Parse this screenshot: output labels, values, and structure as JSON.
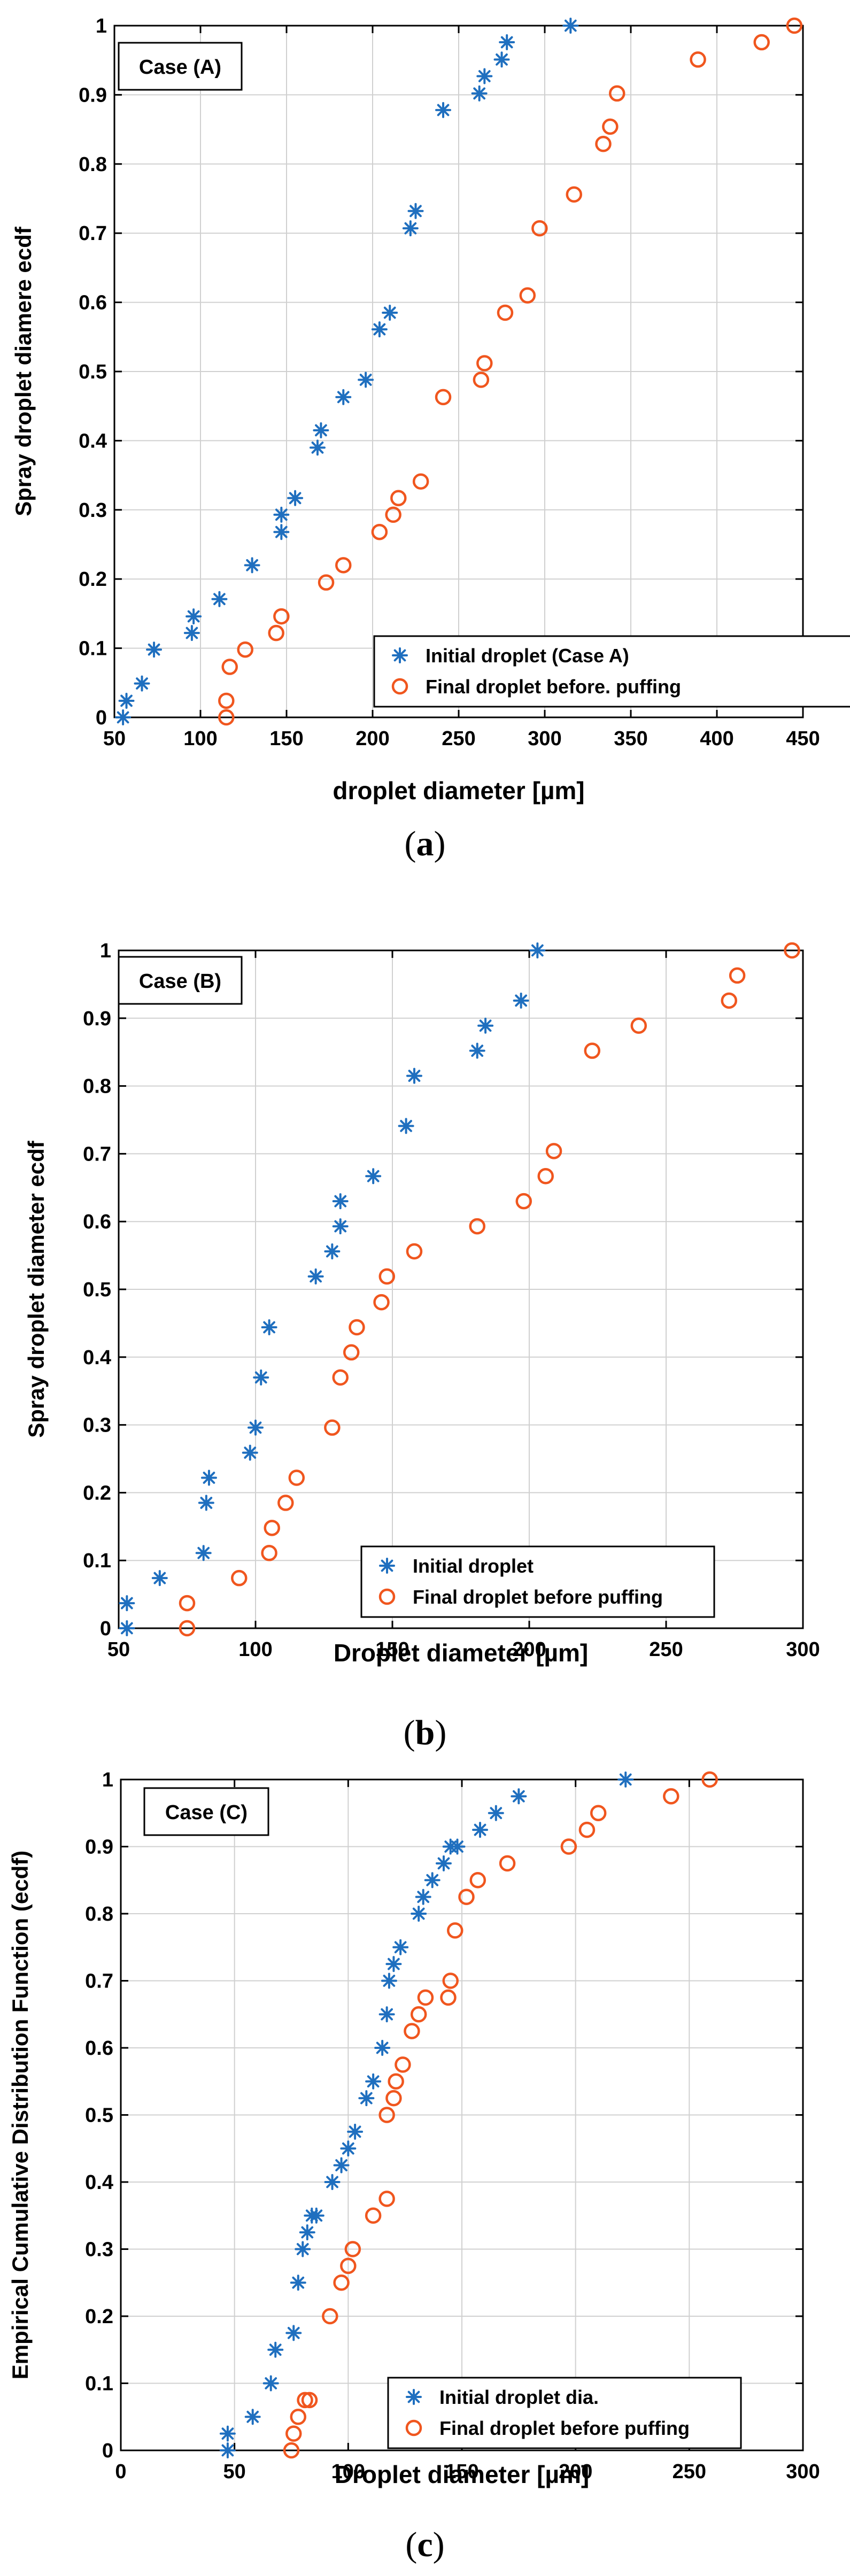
{
  "figure": {
    "initial_color": "#1f6fbf",
    "final_color": "#f0561e",
    "grid_color": "#d0d0d0"
  },
  "chart_data": [
    {
      "type": "scatter",
      "panel_letter": "a",
      "case_label": "Case (A)",
      "xlabel": "droplet diameter [µm]",
      "ylabel": "Spray droplet diamere ecdf",
      "xlim": [
        50,
        450
      ],
      "ylim": [
        0,
        1
      ],
      "xticks": [
        50,
        100,
        150,
        200,
        250,
        300,
        350,
        400,
        450
      ],
      "yticks": [
        0,
        0.1,
        0.2,
        0.3,
        0.4,
        0.5,
        0.6,
        0.7,
        0.8,
        0.9,
        1
      ],
      "ytick_labels": [
        "0",
        "0.1",
        "0.2",
        "0.3",
        "0.4",
        "0.5",
        "0.6",
        "0.7",
        "0.8",
        "0.9",
        "1"
      ],
      "legend_position": "bottom-right",
      "series": [
        {
          "name": "Initial droplet (Case A)",
          "marker": "asterisk",
          "x": [
            55,
            57,
            66,
            73,
            95,
            96,
            111,
            130,
            147,
            147,
            155,
            168,
            170,
            183,
            196,
            204,
            210,
            222,
            225,
            241,
            262,
            265,
            275,
            278,
            315
          ],
          "y": [
            0,
            0.024,
            0.049,
            0.098,
            0.122,
            0.146,
            0.171,
            0.22,
            0.268,
            0.293,
            0.317,
            0.39,
            0.415,
            0.463,
            0.488,
            0.561,
            0.585,
            0.707,
            0.732,
            0.878,
            0.902,
            0.927,
            0.951,
            0.976,
            1.0
          ]
        },
        {
          "name": "Final droplet before. puffing",
          "marker": "circle",
          "x": [
            115,
            115,
            117,
            126,
            144,
            147,
            173,
            183,
            204,
            212,
            215,
            228,
            241,
            263,
            265,
            277,
            290,
            297,
            317,
            334,
            338,
            342,
            389,
            426,
            445
          ],
          "y": [
            0,
            0.024,
            0.073,
            0.098,
            0.122,
            0.146,
            0.195,
            0.22,
            0.268,
            0.293,
            0.317,
            0.341,
            0.463,
            0.488,
            0.512,
            0.585,
            0.61,
            0.707,
            0.756,
            0.829,
            0.854,
            0.902,
            0.951,
            0.976,
            1.0
          ]
        }
      ]
    },
    {
      "type": "scatter",
      "panel_letter": "b",
      "case_label": "Case (B)",
      "xlabel": "Droplet diameter [µm]",
      "ylabel": "Spray droplet diameter ecdf",
      "xlim": [
        50,
        300
      ],
      "ylim": [
        0,
        1
      ],
      "xticks": [
        50,
        100,
        150,
        200,
        250,
        300
      ],
      "yticks": [
        0,
        0.1,
        0.2,
        0.3,
        0.4,
        0.5,
        0.6,
        0.7,
        0.8,
        0.9,
        1
      ],
      "ytick_labels": [
        "0",
        "0.1",
        "0.2",
        "0.3",
        "0.4",
        "0.5",
        "0.6",
        "0.7",
        "0.8",
        "0.9",
        "1"
      ],
      "legend_position": "bottom-right",
      "series": [
        {
          "name": "Initial droplet",
          "marker": "asterisk",
          "x": [
            53,
            53,
            65,
            81,
            82,
            83,
            98,
            100,
            102,
            105,
            122,
            128,
            131,
            131,
            143,
            155,
            158,
            181,
            184,
            197,
            203
          ],
          "y": [
            0,
            0.037,
            0.074,
            0.111,
            0.185,
            0.222,
            0.259,
            0.296,
            0.37,
            0.444,
            0.519,
            0.556,
            0.593,
            0.63,
            0.667,
            0.741,
            0.815,
            0.852,
            0.889,
            0.926,
            1.0
          ]
        },
        {
          "name": "Final droplet before puffing",
          "marker": "circle",
          "x": [
            75,
            75,
            94,
            105,
            106,
            111,
            115,
            128,
            131,
            135,
            137,
            146,
            148,
            158,
            181,
            198,
            206,
            209,
            223,
            240,
            273,
            276,
            296
          ],
          "y": [
            0,
            0.037,
            0.074,
            0.111,
            0.148,
            0.185,
            0.222,
            0.296,
            0.37,
            0.407,
            0.444,
            0.481,
            0.519,
            0.556,
            0.593,
            0.63,
            0.667,
            0.704,
            0.852,
            0.889,
            0.926,
            0.963,
            1.0
          ]
        }
      ]
    },
    {
      "type": "scatter",
      "panel_letter": "c",
      "case_label": "Case (C)",
      "xlabel": "Droplet diameter [µm]",
      "ylabel": "Empirical Cumulative Distribution Function (ecdf)",
      "xlim": [
        0,
        300
      ],
      "ylim": [
        0,
        1
      ],
      "xticks": [
        0,
        50,
        100,
        150,
        200,
        250,
        300
      ],
      "yticks": [
        0,
        0.1,
        0.2,
        0.3,
        0.4,
        0.5,
        0.6,
        0.7,
        0.8,
        0.9,
        1
      ],
      "ytick_labels": [
        "0",
        "0.1",
        "0.2",
        "0.3",
        "0.4",
        "0.5",
        "0.6",
        "0.7",
        "0.8",
        "0.9",
        "1"
      ],
      "legend_position": "bottom-right",
      "series": [
        {
          "name": "Initial droplet dia.",
          "marker": "asterisk",
          "x": [
            47,
            47,
            58,
            66,
            68,
            76,
            78,
            80,
            82,
            84,
            86,
            93,
            97,
            100,
            103,
            108,
            111,
            115,
            117,
            118,
            120,
            123,
            131,
            133,
            137,
            142,
            145,
            148,
            158,
            165,
            175,
            222
          ],
          "y": [
            0,
            0.025,
            0.05,
            0.1,
            0.15,
            0.175,
            0.25,
            0.3,
            0.325,
            0.35,
            0.35,
            0.4,
            0.425,
            0.45,
            0.475,
            0.525,
            0.55,
            0.6,
            0.65,
            0.7,
            0.725,
            0.75,
            0.8,
            0.825,
            0.85,
            0.875,
            0.9,
            0.9,
            0.925,
            0.95,
            0.975,
            1.0
          ]
        },
        {
          "name": "Final droplet before puffing",
          "marker": "circle",
          "x": [
            75,
            76,
            78,
            81,
            83,
            92,
            97,
            100,
            102,
            111,
            117,
            117,
            120,
            121,
            124,
            128,
            131,
            134,
            144,
            145,
            147,
            152,
            157,
            170,
            197,
            205,
            210,
            242,
            259
          ],
          "y": [
            0,
            0.025,
            0.05,
            0.075,
            0.075,
            0.2,
            0.25,
            0.275,
            0.3,
            0.35,
            0.375,
            0.5,
            0.525,
            0.55,
            0.575,
            0.625,
            0.65,
            0.675,
            0.675,
            0.7,
            0.775,
            0.825,
            0.85,
            0.875,
            0.9,
            0.925,
            0.95,
            0.975,
            1.0
          ]
        }
      ]
    }
  ]
}
